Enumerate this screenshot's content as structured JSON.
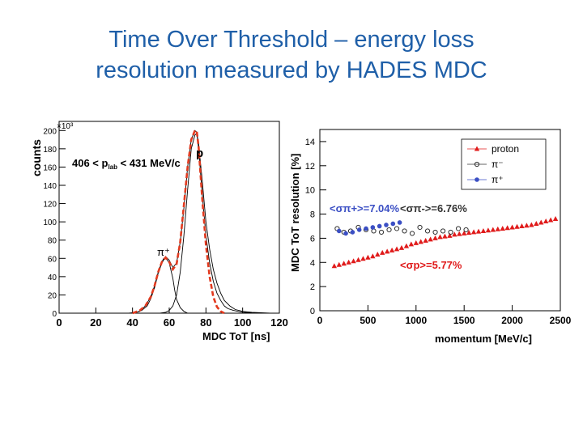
{
  "slide": {
    "title_line1": "Time Over Threshold – energy loss",
    "title_line2": "resolution measured by HADES MDC"
  },
  "chart_data": [
    {
      "type": "line",
      "xlabel": "MDC ToT  [ns]",
      "ylabel": "counts",
      "y_multiplier": "×10³",
      "xlim": [
        0,
        120
      ],
      "ylim": [
        0,
        210
      ],
      "xticks": [
        0,
        20,
        40,
        60,
        80,
        100,
        120
      ],
      "yticks": [
        0,
        20,
        40,
        60,
        80,
        100,
        120,
        140,
        160,
        180,
        200
      ],
      "annotations": {
        "range_main": "406 < p",
        "range_sub": "lab",
        "range_tail": " < 431 MeV/c",
        "proton": "p",
        "pion": "π⁺"
      },
      "series": [
        {
          "color": "#000000",
          "x": [
            38,
            42,
            45,
            48,
            50,
            52,
            54,
            56,
            58,
            60,
            62,
            64,
            66,
            68,
            70,
            72,
            74,
            75,
            76,
            78,
            80,
            82,
            84,
            86,
            88,
            90,
            92,
            95,
            100,
            105,
            110
          ],
          "values": [
            0,
            1,
            3,
            8,
            16,
            28,
            44,
            55,
            62,
            58,
            50,
            55,
            78,
            115,
            160,
            190,
            200,
            198,
            180,
            130,
            85,
            55,
            35,
            22,
            14,
            8,
            5,
            3,
            1,
            0.5,
            0
          ]
        },
        {
          "color": "#000000",
          "x": [
            40,
            44,
            47,
            50,
            52,
            54,
            56,
            57,
            58,
            60,
            62,
            63,
            64,
            66,
            68,
            70
          ],
          "values": [
            0,
            2,
            8,
            18,
            30,
            45,
            56,
            60,
            61,
            55,
            38,
            25,
            15,
            6,
            2,
            0
          ]
        },
        {
          "color": "#000000",
          "x": [
            55,
            58,
            60,
            62,
            64,
            66,
            68,
            70,
            72,
            74,
            75,
            76,
            78,
            80,
            82,
            84,
            86,
            88,
            90,
            93,
            96,
            100,
            105,
            110,
            115
          ],
          "values": [
            0,
            1,
            3,
            8,
            20,
            45,
            85,
            135,
            180,
            195,
            197,
            185,
            145,
            100,
            70,
            48,
            33,
            22,
            14,
            8,
            4,
            2,
            1,
            0.5,
            0
          ]
        },
        {
          "color": "#e23a1f",
          "dashed": true,
          "x": [
            40,
            44,
            47,
            50,
            52,
            54,
            56,
            58,
            60,
            62,
            64,
            66,
            68,
            70,
            72,
            74,
            75,
            76,
            78,
            80,
            82,
            84,
            86,
            88,
            90
          ],
          "values": [
            0,
            3,
            8,
            18,
            30,
            45,
            56,
            61,
            56,
            48,
            54,
            78,
            118,
            160,
            190,
            200,
            199,
            182,
            125,
            75,
            40,
            18,
            7,
            2,
            0
          ]
        }
      ]
    },
    {
      "type": "scatter",
      "xlabel": "momentum   [MeV/c]",
      "ylabel": "MDC ToT resolution [%]",
      "xlim": [
        0,
        2500
      ],
      "ylim": [
        0,
        15
      ],
      "xticks": [
        0,
        500,
        1000,
        1500,
        2000,
        2500
      ],
      "yticks": [
        0,
        2,
        4,
        6,
        8,
        10,
        12,
        14
      ],
      "legend": [
        {
          "name": "proton",
          "color": "#e01b1b",
          "marker": "triangle"
        },
        {
          "name": "π⁻",
          "color": "#333333",
          "marker": "open-circle"
        },
        {
          "name": "π⁺",
          "color": "#3b4fc4",
          "marker": "filled-circle"
        }
      ],
      "annotations": {
        "pi_plus_mean": "<σπ+>=7.04%",
        "pi_minus_mean": "<σπ->=6.76%",
        "proton_mean": "<σp>=5.77%"
      },
      "series": [
        {
          "name": "proton",
          "color": "#e01b1b",
          "x": [
            150,
            200,
            250,
            300,
            350,
            400,
            450,
            500,
            550,
            600,
            650,
            700,
            750,
            800,
            850,
            900,
            950,
            1000,
            1050,
            1100,
            1150,
            1200,
            1250,
            1300,
            1350,
            1400,
            1450,
            1500,
            1550,
            1600,
            1650,
            1700,
            1750,
            1800,
            1850,
            1900,
            1950,
            2000,
            2050,
            2100,
            2150,
            2200,
            2250,
            2300,
            2350,
            2400,
            2450
          ],
          "values": [
            3.7,
            3.8,
            3.9,
            4.0,
            4.1,
            4.2,
            4.3,
            4.4,
            4.5,
            4.65,
            4.8,
            4.9,
            5.0,
            5.1,
            5.2,
            5.35,
            5.5,
            5.6,
            5.7,
            5.8,
            5.9,
            6.0,
            6.1,
            6.15,
            6.2,
            6.3,
            6.35,
            6.4,
            6.45,
            6.5,
            6.55,
            6.6,
            6.65,
            6.7,
            6.75,
            6.8,
            6.85,
            6.9,
            6.95,
            7.0,
            7.05,
            7.1,
            7.2,
            7.3,
            7.4,
            7.5,
            7.6
          ]
        },
        {
          "name": "π⁻",
          "color": "#333333",
          "x": [
            180,
            250,
            320,
            400,
            480,
            560,
            640,
            720,
            800,
            880,
            960,
            1040,
            1120,
            1200,
            1280,
            1360,
            1440,
            1520
          ],
          "values": [
            6.8,
            6.5,
            6.6,
            6.9,
            6.7,
            6.6,
            6.5,
            6.7,
            6.8,
            6.6,
            6.4,
            6.9,
            6.6,
            6.5,
            6.6,
            6.5,
            6.8,
            6.7
          ]
        },
        {
          "name": "π⁺",
          "color": "#3b4fc4",
          "x": [
            200,
            270,
            340,
            410,
            480,
            550,
            620,
            690,
            760,
            830
          ],
          "values": [
            6.6,
            6.4,
            6.5,
            6.7,
            6.8,
            6.9,
            7.0,
            7.1,
            7.2,
            7.3
          ]
        }
      ]
    }
  ]
}
